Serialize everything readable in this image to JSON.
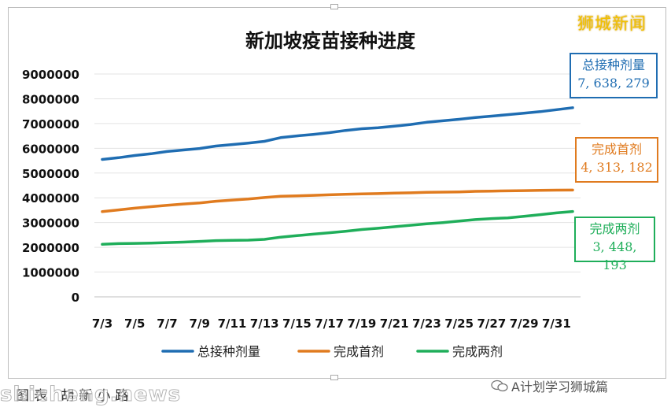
{
  "brand": "狮城新闻",
  "footnote": "图表  胡新小路",
  "watermark": "shicheng.news",
  "wechat": {
    "icon": "wechat-icon",
    "text": "A计划学习狮城篇"
  },
  "colors": {
    "total": "#1f6db2",
    "first": "#e07b1f",
    "second": "#1fae5a"
  },
  "callouts": [
    {
      "key": "total",
      "title": "总接种剂量",
      "value": "7, 638, 279"
    },
    {
      "key": "first",
      "title": "完成首剂",
      "value": "4, 313, 182"
    },
    {
      "key": "second",
      "title": "完成两剂",
      "value": "3, 448, 193"
    }
  ],
  "chart_data": {
    "type": "line",
    "title": "新加坡疫苗接种进度",
    "xlabel": "",
    "ylabel": "",
    "ylim": [
      0,
      9000000
    ],
    "yticks": [
      0,
      1000000,
      2000000,
      3000000,
      4000000,
      5000000,
      6000000,
      7000000,
      8000000,
      9000000
    ],
    "grid": true,
    "legend": "bottom",
    "x": [
      "7/3",
      "7/4",
      "7/5",
      "7/6",
      "7/7",
      "7/8",
      "7/9",
      "7/10",
      "7/11",
      "7/12",
      "7/13",
      "7/14",
      "7/15",
      "7/16",
      "7/17",
      "7/18",
      "7/19",
      "7/20",
      "7/21",
      "7/22",
      "7/23",
      "7/24",
      "7/25",
      "7/26",
      "7/27",
      "7/28",
      "7/29",
      "7/30",
      "7/31",
      "8/1"
    ],
    "xtick_labels": [
      "7/3",
      "",
      "7/5",
      "",
      "7/7",
      "",
      "7/9",
      "",
      "7/11",
      "",
      "7/13",
      "",
      "7/15",
      "",
      "7/17",
      "",
      "7/19",
      "",
      "7/21",
      "",
      "7/23",
      "",
      "7/25",
      "",
      "7/27",
      "",
      "7/29",
      "",
      "7/31",
      ""
    ],
    "series": [
      {
        "name": "总接种剂量",
        "color": "#1f6db2",
        "values": [
          5550000,
          5620000,
          5710000,
          5780000,
          5870000,
          5930000,
          5990000,
          6090000,
          6150000,
          6210000,
          6280000,
          6430000,
          6500000,
          6560000,
          6630000,
          6720000,
          6790000,
          6830000,
          6890000,
          6960000,
          7050000,
          7110000,
          7170000,
          7240000,
          7300000,
          7360000,
          7420000,
          7480000,
          7560000,
          7638279
        ]
      },
      {
        "name": "完成首剂",
        "color": "#e07b1f",
        "values": [
          3440000,
          3510000,
          3580000,
          3640000,
          3700000,
          3750000,
          3790000,
          3860000,
          3910000,
          3950000,
          4010000,
          4060000,
          4080000,
          4100000,
          4120000,
          4140000,
          4160000,
          4170000,
          4190000,
          4200000,
          4220000,
          4230000,
          4240000,
          4260000,
          4270000,
          4280000,
          4290000,
          4300000,
          4310000,
          4313182
        ]
      },
      {
        "name": "完成两剂",
        "color": "#1fae5a",
        "values": [
          2120000,
          2150000,
          2160000,
          2170000,
          2190000,
          2210000,
          2240000,
          2270000,
          2280000,
          2290000,
          2320000,
          2410000,
          2470000,
          2530000,
          2590000,
          2650000,
          2720000,
          2770000,
          2830000,
          2890000,
          2950000,
          3000000,
          3060000,
          3120000,
          3160000,
          3190000,
          3250000,
          3320000,
          3390000,
          3448193
        ]
      }
    ]
  }
}
